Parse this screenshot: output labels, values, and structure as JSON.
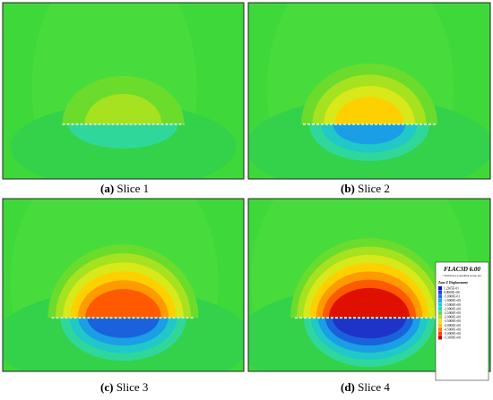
{
  "panels": [
    {
      "label": "(a)",
      "caption": "Slice 1"
    },
    {
      "label": "(b)",
      "caption": "Slice 2"
    },
    {
      "label": "(c)",
      "caption": "Slice 3"
    },
    {
      "label": "(d)",
      "caption": "Slice 4"
    }
  ],
  "legend": {
    "title": "FLAC3D 6.00",
    "copyright": "©2019 Itasca Consulting Group, Inc.",
    "heading": "Zone Z Displacement",
    "entries": [
      "1.2365E-01",
      "0.0000E+00",
      "-5.0000E-01",
      "-1.0000E+00",
      "-1.5000E+00",
      "-2.0000E+00",
      "-2.5000E+00",
      "-3.0000E+00",
      "-3.5000E+00",
      "-4.0000E+00",
      "-4.5000E+00",
      "-5.0000E+00",
      "-5.3458E+00"
    ]
  }
}
